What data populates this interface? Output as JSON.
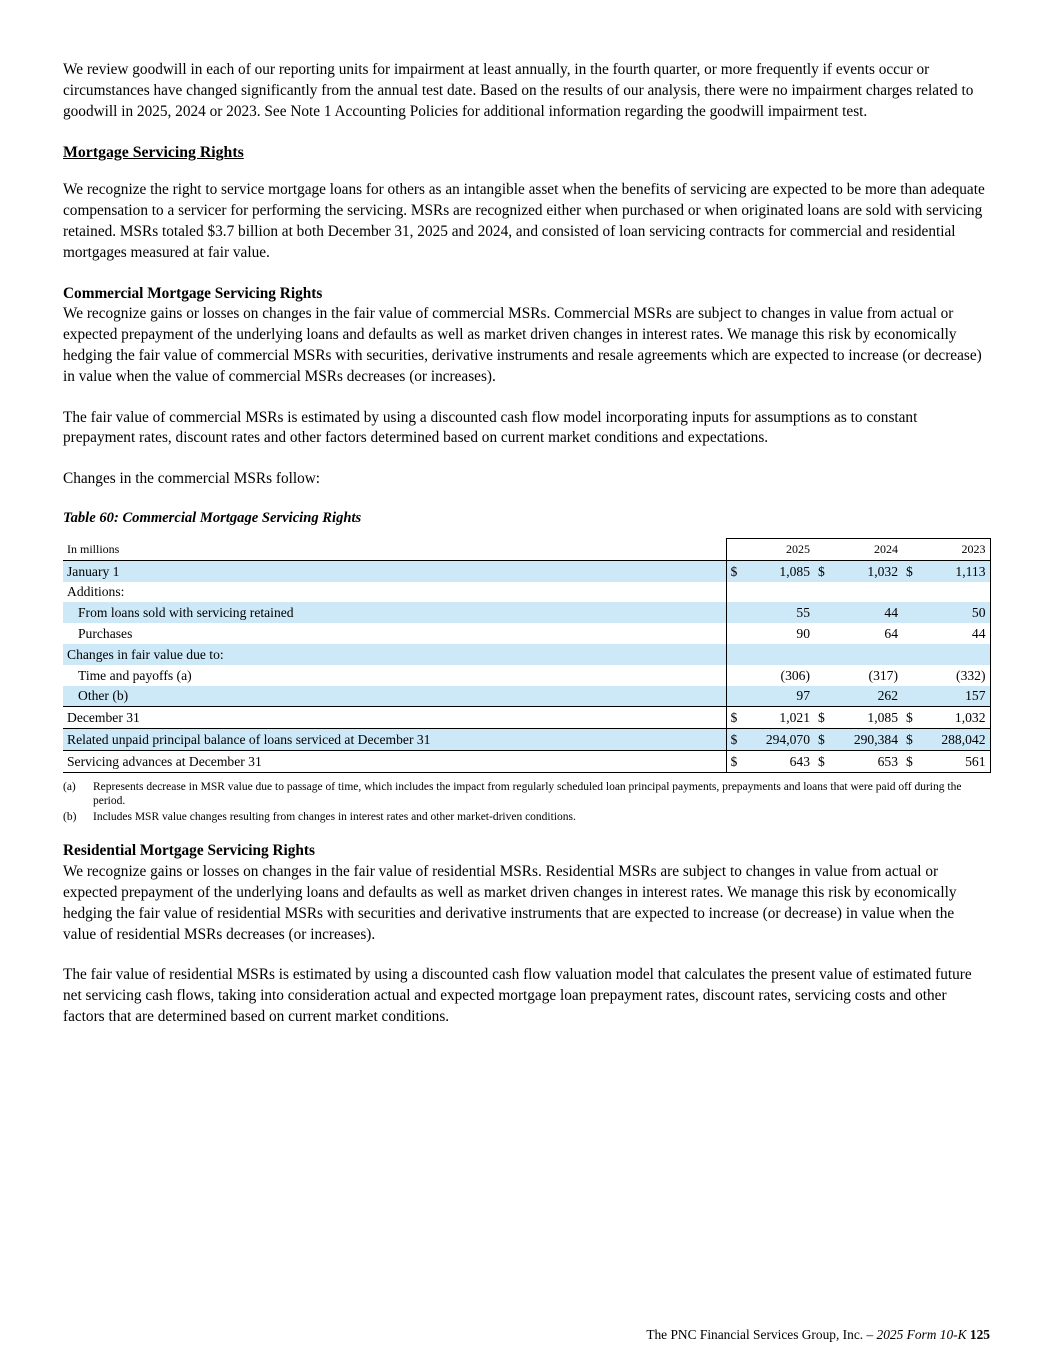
{
  "colors": {
    "row_shade": "#cde9f8",
    "rule": "#000000"
  },
  "intro": {
    "goodwill_paragraph": "We review goodwill in each of our reporting units for impairment at least annually, in the fourth quarter, or more frequently if events occur or circumstances have changed significantly from the annual test date. Based on the results of our analysis, there were no impairment charges related to goodwill in 2025, 2024 or 2023. See Note 1 Accounting Policies for additional information regarding the goodwill impairment test."
  },
  "msr": {
    "heading": "Mortgage Servicing Rights",
    "paragraph": "We recognize the right to service mortgage loans for others as an intangible asset when the benefits of servicing are expected to be more than adequate compensation to a servicer for performing the servicing. MSRs are recognized either when purchased or when originated loans are sold with servicing retained. MSRs totaled $3.7 billion at both December 31, 2025 and 2024, and consisted of loan servicing contracts for commercial and residential mortgages measured at fair value."
  },
  "commercial": {
    "heading": "Commercial Mortgage Servicing Rights",
    "p1": "We recognize gains or losses on changes in the fair value of commercial MSRs. Commercial MSRs are subject to changes in value from actual or expected prepayment of the underlying loans and defaults as well as market driven changes in interest rates. We manage this risk by economically hedging the fair value of commercial MSRs with securities, derivative instruments and resale agreements which are expected to increase (or decrease) in value when the value of commercial MSRs decreases (or increases).",
    "p2": "The fair value of commercial MSRs is estimated by using a discounted cash flow model incorporating inputs for assumptions as to constant prepayment rates, discount rates and other factors determined based on current market conditions and expectations.",
    "p3": "Changes in the commercial MSRs follow:"
  },
  "table": {
    "caption": "Table 60: Commercial Mortgage Servicing Rights",
    "unit_label": "In millions",
    "years": [
      "2025",
      "2024",
      "2023"
    ],
    "rows": [
      {
        "label": "January 1",
        "indent": false,
        "shaded": true,
        "dollar": true,
        "values": [
          "1,085",
          "1,032",
          "1,113"
        ]
      },
      {
        "label": "Additions:",
        "indent": false,
        "shaded": false,
        "dollar": false,
        "values": null
      },
      {
        "label": "From loans sold with servicing retained",
        "indent": true,
        "shaded": true,
        "dollar": false,
        "values": [
          "55",
          "44",
          "50"
        ]
      },
      {
        "label": "Purchases",
        "indent": true,
        "shaded": false,
        "dollar": false,
        "values": [
          "90",
          "64",
          "44"
        ]
      },
      {
        "label": "Changes in fair value due to:",
        "indent": false,
        "shaded": true,
        "dollar": false,
        "values": null
      },
      {
        "label": "Time and payoffs (a)",
        "indent": true,
        "shaded": false,
        "dollar": false,
        "values": [
          "(306)",
          "(317)",
          "(332)"
        ]
      },
      {
        "label": "Other (b)",
        "indent": true,
        "shaded": true,
        "dollar": false,
        "values": [
          "97",
          "262",
          "157"
        ]
      },
      {
        "label": "December 31",
        "indent": false,
        "shaded": false,
        "dollar": true,
        "values": [
          "1,021",
          "1,085",
          "1,032"
        ],
        "rule_above": true
      },
      {
        "label": "Related unpaid principal balance of loans serviced at December 31",
        "indent": false,
        "shaded": true,
        "dollar": true,
        "values": [
          "294,070",
          "290,384",
          "288,042"
        ],
        "rule_above": true
      },
      {
        "label": "Servicing advances at December 31",
        "indent": false,
        "shaded": false,
        "dollar": true,
        "values": [
          "643",
          "653",
          "561"
        ],
        "rule_above": true,
        "rule_below": true
      }
    ]
  },
  "footnotes": [
    {
      "marker": "(a)",
      "text": "Represents decrease in MSR value due to passage of time, which includes the impact from regularly scheduled loan principal payments, prepayments and loans that were paid off during the period."
    },
    {
      "marker": "(b)",
      "text": "Includes MSR value changes resulting from changes in interest rates and other market-driven conditions."
    }
  ],
  "residential": {
    "heading": "Residential Mortgage Servicing Rights",
    "p1": "We recognize gains or losses on changes in the fair value of residential MSRs. Residential MSRs are subject to changes in value from actual or expected prepayment of the underlying loans and defaults as well as market driven changes in interest rates. We manage this risk by economically hedging the fair value of residential MSRs with securities and derivative instruments that are expected to increase (or decrease) in value when the value of residential MSRs decreases (or increases).",
    "p2": "The fair value of residential MSRs is estimated by using a discounted cash flow valuation model that calculates the present value of estimated future net servicing cash flows, taking into consideration actual and expected mortgage loan prepayment rates, discount rates, servicing costs and other factors that are determined based on current market conditions."
  },
  "footer": {
    "company": "The PNC Financial Services Group, Inc. –",
    "form": "2025 Form 10-K",
    "page_number": "125"
  }
}
